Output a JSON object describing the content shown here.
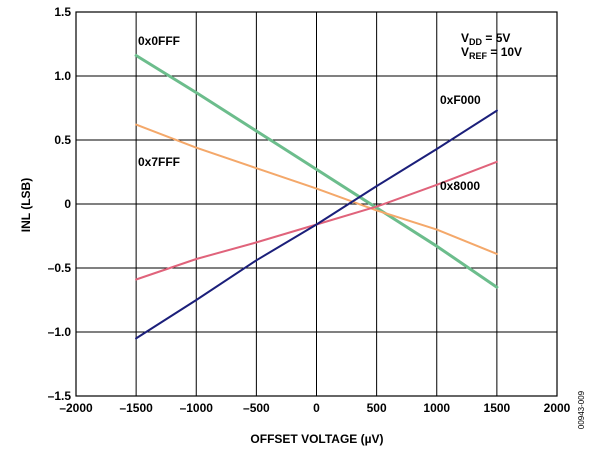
{
  "chart_data": {
    "type": "line",
    "xlabel": "OFFSET VOLTAGE (µV)",
    "ylabel": "INL (LSB)",
    "xlim": [
      -2000,
      2000
    ],
    "ylim": [
      -1.5,
      1.5
    ],
    "xticks": [
      -2000,
      -1500,
      -1000,
      -500,
      0,
      500,
      1000,
      1500,
      2000
    ],
    "xtick_labels": [
      "–2000",
      "–1500",
      "–1000",
      "–500",
      "0",
      "500",
      "1000",
      "1500",
      "2000"
    ],
    "yticks": [
      1.5,
      1.0,
      0.5,
      0,
      -0.5,
      -1.0,
      -1.5
    ],
    "ytick_labels": [
      "1.5",
      "1.0",
      "0.5",
      "0",
      "–0.5",
      "–1.0",
      "–1.5"
    ],
    "grid": "vertical lines at each x tick, horizontal lines at each y tick",
    "series": [
      {
        "name": "0x0FFF",
        "color": "#6cbd8c",
        "x": [
          -1500,
          -1000,
          -500,
          0,
          500,
          1000,
          1500
        ],
        "y": [
          1.16,
          0.87,
          0.57,
          0.27,
          -0.03,
          -0.33,
          -0.65
        ]
      },
      {
        "name": "0x7FFF",
        "color": "#f4a86a",
        "x": [
          -1500,
          -1000,
          -500,
          0,
          500,
          1000,
          1500
        ],
        "y": [
          0.62,
          0.44,
          0.28,
          0.12,
          -0.05,
          -0.2,
          -0.39
        ]
      },
      {
        "name": "0x8000",
        "color": "#e0637b",
        "x": [
          -1500,
          -1000,
          -500,
          0,
          500,
          1000,
          1500
        ],
        "y": [
          -0.59,
          -0.43,
          -0.3,
          -0.16,
          -0.02,
          0.15,
          0.33
        ]
      },
      {
        "name": "0xF000",
        "color": "#1b1f7a",
        "x": [
          -1500,
          -1000,
          -500,
          0,
          500,
          1000,
          1500
        ],
        "y": [
          -1.05,
          -0.75,
          -0.44,
          -0.16,
          0.14,
          0.43,
          0.73
        ]
      }
    ],
    "annotations": {
      "conditions": [
        {
          "main": "V",
          "sub": "DD",
          "rest": " = 5V"
        },
        {
          "main": "V",
          "sub": "REF",
          "rest": " = 10V"
        }
      ],
      "code": "00943-009"
    }
  }
}
